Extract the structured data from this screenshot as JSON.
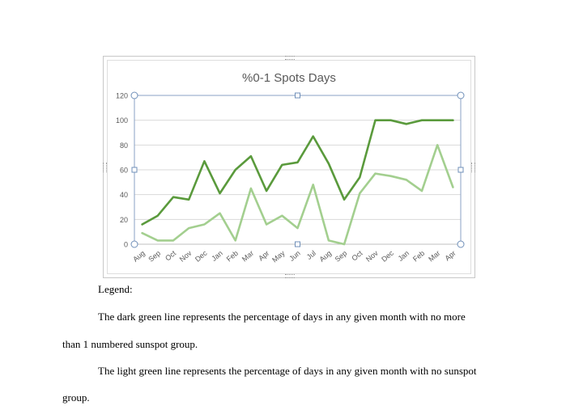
{
  "chart_data": {
    "type": "line",
    "title": "%0-1 Spots Days",
    "categories": [
      "Aug",
      "Sep",
      "Oct",
      "Nov",
      "Dec",
      "Jan",
      "Feb",
      "Mar",
      "Apr",
      "May",
      "Jun",
      "Jul",
      "Aug",
      "Sep",
      "Oct",
      "Nov",
      "Dec",
      "Jan",
      "Feb",
      "Mar",
      "Apr"
    ],
    "y_ticks": [
      "0",
      "20",
      "40",
      "60",
      "80",
      "100",
      "120"
    ],
    "ylim": [
      0,
      120
    ],
    "grid": true,
    "legend": "none",
    "series": [
      {
        "color": "#5a9a3c",
        "values": [
          16,
          23,
          38,
          36,
          67,
          41,
          60,
          71,
          43,
          64,
          66,
          87,
          65,
          36,
          54,
          100,
          100,
          97,
          100,
          100,
          100
        ]
      },
      {
        "color": "#a3cf8f",
        "values": [
          9,
          3,
          3,
          13,
          16,
          25,
          3,
          45,
          16,
          23,
          13,
          48,
          3,
          0,
          41,
          57,
          55,
          52,
          43,
          80,
          46
        ]
      }
    ]
  },
  "document": {
    "legend_heading": "Legend:",
    "para1_line1": "The dark green line represents the percentage of days in any given month with no more",
    "para1_line2": "than 1 numbered sunspot group.",
    "para2_line1": "The light green line represents the percentage of days in any given month with no sunspot",
    "para2_line2": "group."
  }
}
